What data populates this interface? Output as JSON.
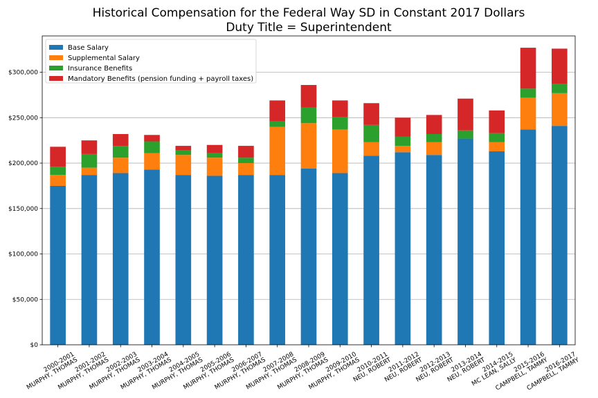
{
  "chart_data": {
    "type": "bar",
    "stacked": true,
    "title": "Historical Compensation for the Federal Way SD in Constant 2017 Dollars",
    "subtitle": "Duty Title = Superintendent",
    "xlabel": "",
    "ylabel": "",
    "ylim": [
      0,
      340000
    ],
    "yticks": [
      0,
      50000,
      100000,
      150000,
      200000,
      250000,
      300000
    ],
    "ytick_labels": [
      "$0",
      "$50,000",
      "$100,000",
      "$150,000",
      "$200,000",
      "$250,000",
      "$300,000"
    ],
    "grid": "horizontal",
    "legend_position": "top-left",
    "categories": [
      [
        "2000-2001",
        "MURPHY, THOMAS"
      ],
      [
        "2001-2002",
        "MURPHY, THOMAS"
      ],
      [
        "2002-2003",
        "MURPHY, THOMAS"
      ],
      [
        "2003-2004",
        "MURPHY, THOMAS"
      ],
      [
        "2004-2005",
        "MURPHY, THOMAS"
      ],
      [
        "2005-2006",
        "MURPHY, THOMAS"
      ],
      [
        "2006-2007",
        "MURPHY, THOMAS"
      ],
      [
        "2007-2008",
        "MURPHY, THOMAS"
      ],
      [
        "2008-2009",
        "MURPHY, THOMAS"
      ],
      [
        "2009-2010",
        "MURPHY, THOMAS"
      ],
      [
        "2010-2011",
        "NEU, ROBERT"
      ],
      [
        "2011-2012",
        "NEU, ROBERT"
      ],
      [
        "2012-2013",
        "NEU, ROBERT"
      ],
      [
        "2013-2014",
        "NEU, ROBERT"
      ],
      [
        "2014-2015",
        "MC LEAN, SALLY"
      ],
      [
        "2015-2016",
        "CAMPBELL, TAMMY"
      ],
      [
        "2016-2017",
        "CAMPBELL, TAMMY"
      ]
    ],
    "series": [
      {
        "name": "Base Salary",
        "color": "#1f77b4",
        "values": [
          175000,
          187000,
          189000,
          193000,
          187000,
          186000,
          187000,
          187000,
          194000,
          189000,
          208000,
          212000,
          209000,
          227000,
          213000,
          237000,
          241000
        ]
      },
      {
        "name": "Supplemental Salary",
        "color": "#ff7f0e",
        "values": [
          12000,
          8000,
          17000,
          18000,
          22000,
          20000,
          13000,
          53000,
          50000,
          48000,
          15000,
          7000,
          14000,
          0,
          10000,
          35000,
          36000
        ]
      },
      {
        "name": "Insurance Benefits",
        "color": "#2ca02c",
        "values": [
          9000,
          15000,
          13000,
          13000,
          5000,
          5000,
          6000,
          6000,
          17000,
          14000,
          19000,
          10000,
          9000,
          9000,
          10000,
          10000,
          10000
        ]
      },
      {
        "name": "Mandatory Benefits (pension funding + payroll taxes)",
        "color": "#d62728",
        "values": [
          22000,
          15000,
          13000,
          7000,
          5000,
          9000,
          13000,
          23000,
          25000,
          18000,
          24000,
          21000,
          21000,
          35000,
          25000,
          45000,
          39000
        ]
      }
    ]
  }
}
